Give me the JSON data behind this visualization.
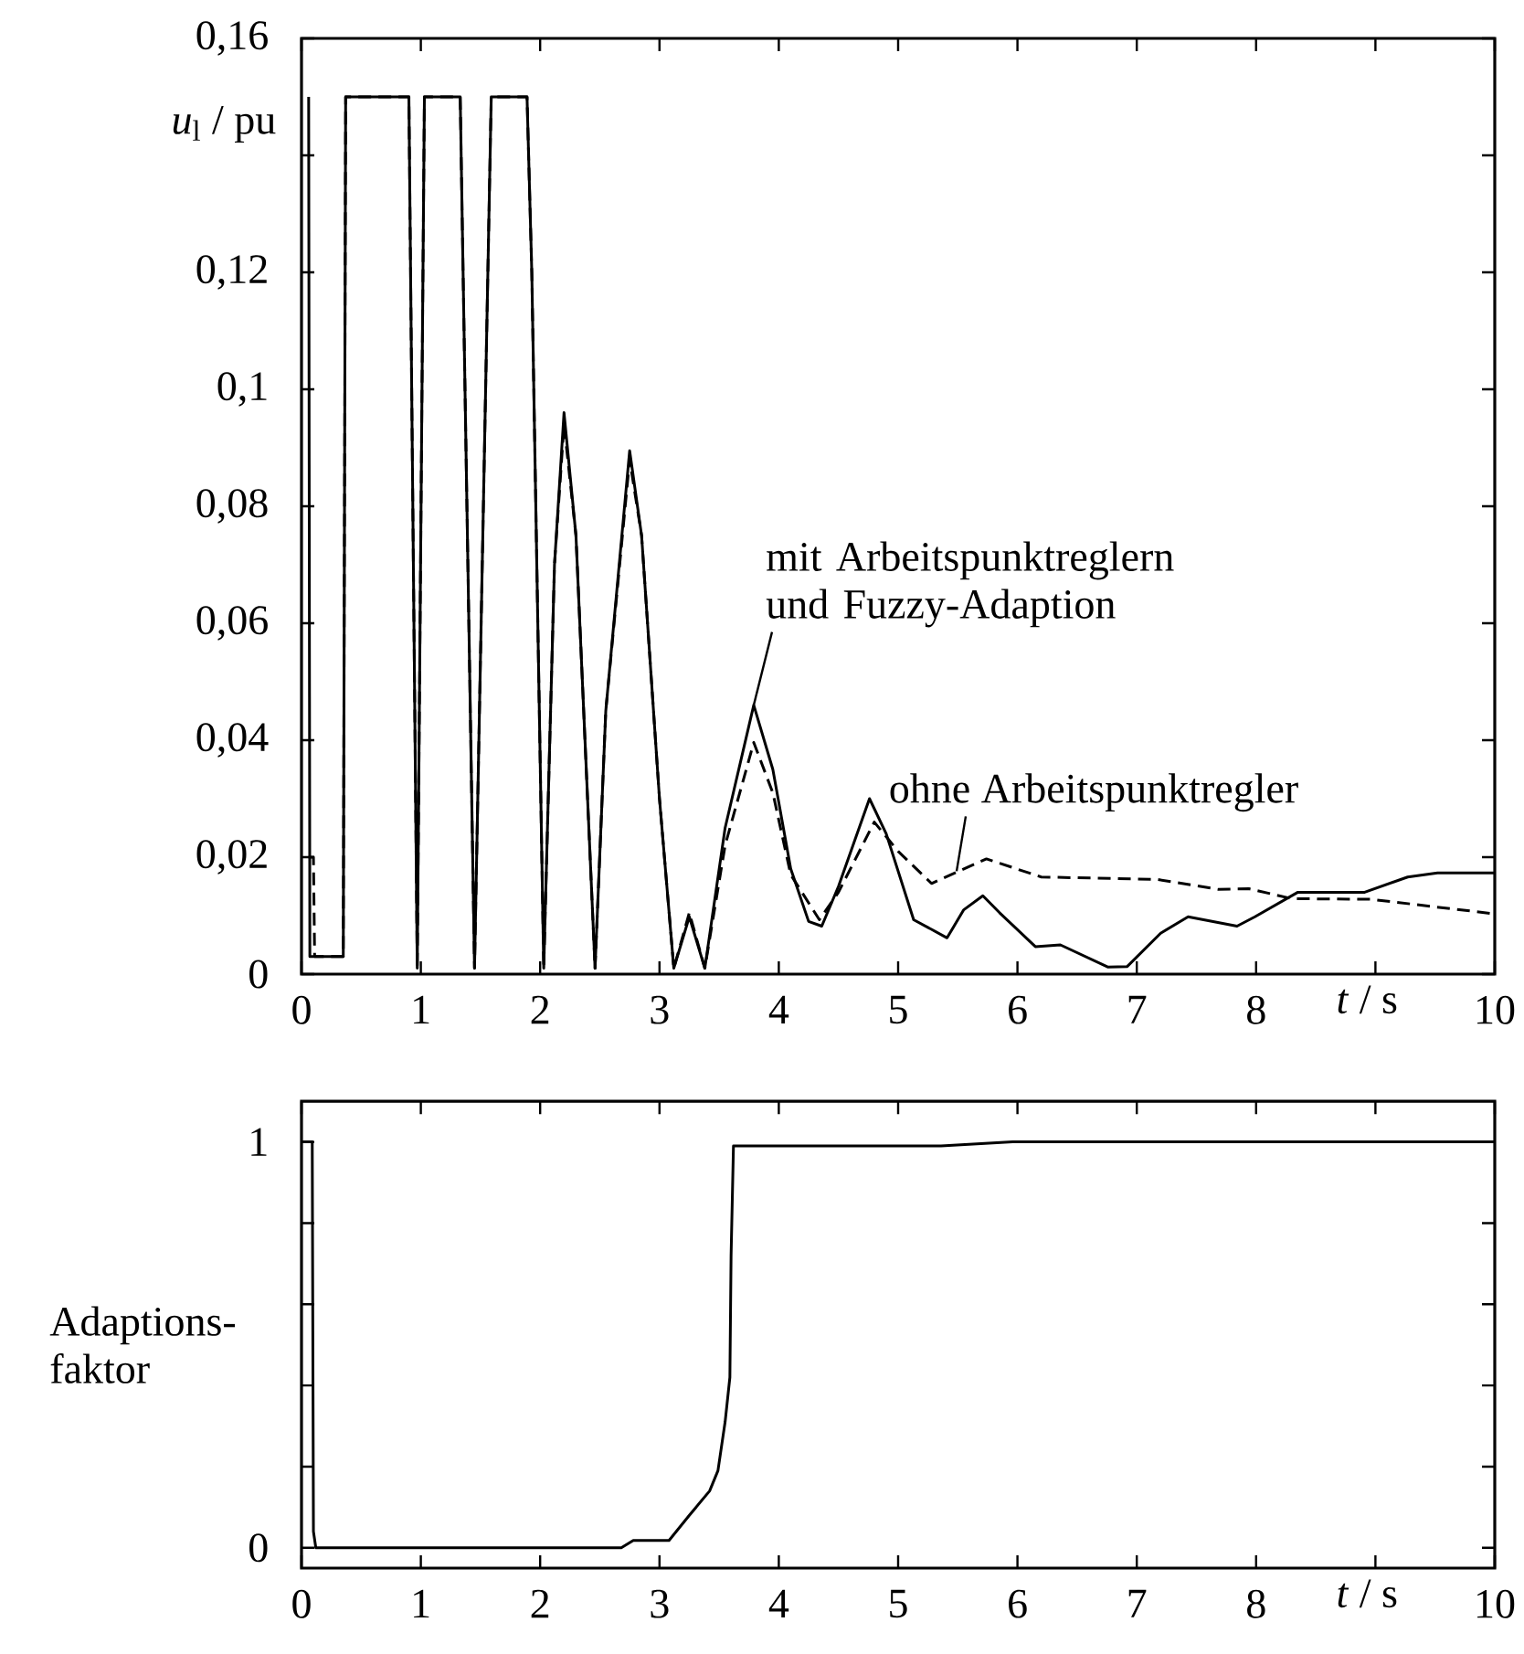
{
  "chart_data": [
    {
      "type": "line",
      "xlabel": "*t* / s",
      "ylabel": "*u*$_{l}$ / pu",
      "x": [
        0.06,
        0.07,
        0.35,
        0.37,
        0.9,
        0.97,
        1.03,
        1.33,
        1.45,
        1.59,
        1.89,
        1.93,
        2.03,
        2.12,
        2.2,
        2.3,
        2.46,
        2.55,
        2.75,
        2.85,
        3.0,
        3.12,
        3.25,
        3.38,
        3.55,
        3.79,
        3.95,
        4.1,
        4.25,
        4.36,
        4.5,
        4.76,
        4.9,
        5.13,
        5.41,
        5.55,
        5.71,
        5.85,
        6.15,
        6.36,
        6.76,
        6.92,
        7.2,
        7.43,
        7.84,
        7.99,
        8.35,
        8.91,
        9.27,
        9.52,
        10
      ],
      "series": [
        {
          "color": "#000000",
          "line_style": "solid",
          "values": [
            0.15,
            0.003,
            0.003,
            0.15,
            0.15,
            0.001,
            0.15,
            0.15,
            0.001,
            0.15,
            0.15,
            0.12,
            0.001,
            0.07,
            0.096,
            0.075,
            0.001,
            0.045,
            0.0895,
            0.075,
            0.03,
            0.001,
            0.0098,
            0.001,
            0.025,
            0.046,
            0.035,
            0.018,
            0.009,
            0.0082,
            0.015,
            0.03,
            0.024,
            0.0093,
            0.0062,
            0.011,
            0.0134,
            0.0105,
            0.0047,
            0.005,
            0.0012,
            0.0013,
            0.007,
            0.0098,
            0.0082,
            0.0098,
            0.014,
            0.014,
            0.0166,
            0.0173,
            0.0173
          ]
        },
        {
          "color": "#000000",
          "line_style": "dashed",
          "x": [
            0.06,
            0.1,
            0.11,
            0.35,
            0.37,
            0.9,
            0.97,
            1.03,
            1.33,
            1.45,
            1.59,
            1.89,
            1.93,
            2.03,
            2.12,
            2.2,
            2.3,
            2.46,
            2.55,
            2.75,
            2.85,
            3.0,
            3.12,
            3.25,
            3.38,
            3.55,
            3.79,
            3.95,
            4.1,
            4.34,
            4.5,
            4.8,
            5.0,
            5.28,
            5.74,
            6.2,
            7.17,
            7.68,
            7.94,
            8.3,
            8.96,
            10
          ],
          "values": [
            0.02,
            0.02,
            0.003,
            0.003,
            0.15,
            0.15,
            0.001,
            0.15,
            0.15,
            0.001,
            0.15,
            0.15,
            0.12,
            0.001,
            0.07,
            0.094,
            0.075,
            0.001,
            0.045,
            0.088,
            0.075,
            0.03,
            0.001,
            0.0105,
            0.001,
            0.022,
            0.0396,
            0.031,
            0.017,
            0.0093,
            0.014,
            0.026,
            0.021,
            0.0155,
            0.0197,
            0.0166,
            0.0162,
            0.0145,
            0.0146,
            0.0129,
            0.0128,
            0.0103
          ]
        }
      ],
      "xlim": [
        0,
        10
      ],
      "xticks": [
        0,
        1,
        2,
        3,
        4,
        5,
        6,
        7,
        8,
        {
          "value": 9,
          "label": null
        },
        10
      ],
      "ylim": [
        0,
        0.16
      ],
      "yticks": [
        {
          "value": 0,
          "label": "0"
        },
        {
          "value": 0.02,
          "label": "0,02"
        },
        {
          "value": 0.04,
          "label": "0,04"
        },
        {
          "value": 0.06,
          "label": "0,06"
        },
        {
          "value": 0.08,
          "label": "0,08"
        },
        {
          "value": 0.1,
          "label": "0,1"
        },
        {
          "value": 0.12,
          "label": "0,12"
        },
        {
          "value": 0.14,
          "label": null
        },
        {
          "value": 0.16,
          "label": "0,16"
        }
      ],
      "annotations": [
        {
          "text": "mit Arbeitspunktreglern und Fuzzy-Adaption",
          "x": 3.79,
          "y": 0.046
        },
        {
          "text": "ohne Arbeitspunktregler",
          "x": 5.49,
          "y": 0.0176
        }
      ]
    },
    {
      "type": "line",
      "xlabel": "*t* / s",
      "ylabel": "Adaptions-faktor",
      "x": [
        0,
        0.09,
        0.1,
        0.12,
        2.68,
        2.78,
        3.08,
        3.25,
        3.42,
        3.49,
        3.55,
        3.59,
        3.6,
        3.62,
        5.36,
        5.96,
        10
      ],
      "series": [
        {
          "color": "#000000",
          "line_style": "solid",
          "values": [
            1,
            1,
            0.04,
            0,
            0,
            0.018,
            0.018,
            0.08,
            0.14,
            0.19,
            0.31,
            0.42,
            0.72,
            0.99,
            0.99,
            1.0,
            1.0
          ]
        }
      ],
      "xlim": [
        0,
        10
      ],
      "xticks": [
        0,
        1,
        2,
        3,
        4,
        5,
        6,
        7,
        8,
        {
          "value": 9,
          "label": null
        },
        10
      ],
      "ylim": [
        -0.05,
        1.1
      ],
      "yticks": [
        0,
        {
          "value": 0.2,
          "label": null
        },
        {
          "value": 0.4,
          "label": null
        },
        {
          "value": 0.6,
          "label": null
        },
        {
          "value": 0.8,
          "label": null
        },
        1
      ]
    }
  ]
}
